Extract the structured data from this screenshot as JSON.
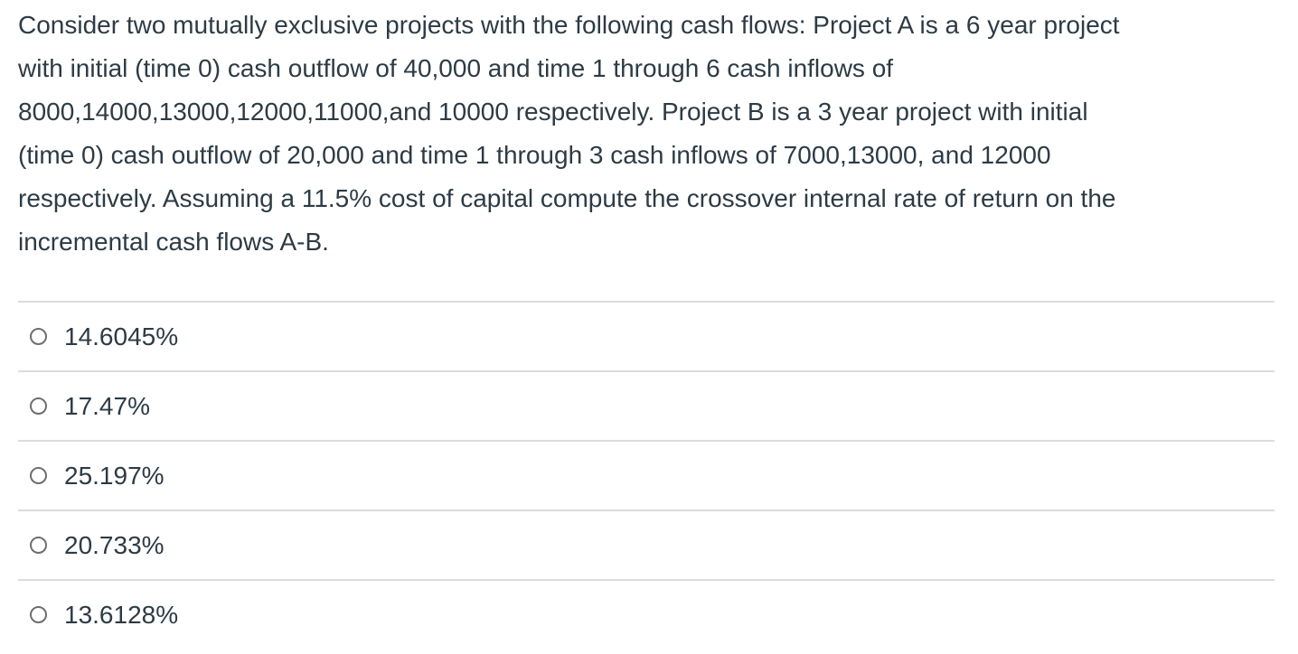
{
  "question": {
    "lines": [
      "Consider two mutually exclusive projects with the following cash flows: Project A is a 6 year project",
      "with initial (time 0) cash outflow of 40,000 and time 1 through 6 cash inflows of",
      "8000,14000,13000,12000,11000,and 10000 respectively. Project B is a 3 year project with initial",
      "(time 0) cash outflow of 20,000 and time 1 through 3 cash inflows of 7000,13000, and 12000",
      "respectively. Assuming a 11.5% cost of capital compute the crossover internal rate of return on the",
      "incremental cash flows A-B."
    ]
  },
  "options": [
    {
      "label": "14.6045%",
      "selected": false
    },
    {
      "label": "17.47%",
      "selected": false
    },
    {
      "label": "25.197%",
      "selected": false
    },
    {
      "label": "20.733%",
      "selected": false
    },
    {
      "label": "13.6128%",
      "selected": false
    }
  ],
  "colors": {
    "text": "#2d3b45",
    "divider": "#dcdcdc",
    "radio_border": "#6e6e6e",
    "background": "#ffffff"
  }
}
